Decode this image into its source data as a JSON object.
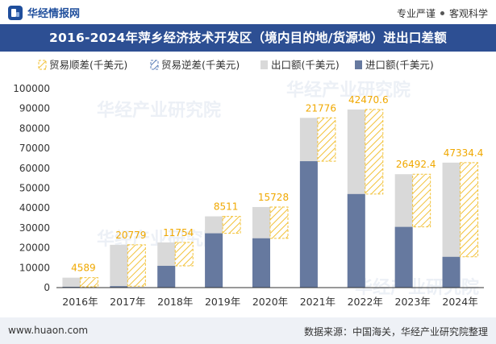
{
  "header": {
    "logo_text": "华经情报网",
    "right_left": "专业严谨",
    "right_right": "客观科学"
  },
  "title": "2016-2024年萍乡经济技术开发区（境内目的地/货源地）进出口差额",
  "footer": {
    "site": "www.huaon.com",
    "source": "数据来源：中国海关，华经产业研究院整理"
  },
  "watermark": "华经产业研究院",
  "colors": {
    "title_band": "#2d4f93",
    "export": "#d9d9d9",
    "import": "#66799f",
    "surplus_stroke": "#f2c23a",
    "deficit_stroke": "#5b7fb8"
  },
  "chart_data": {
    "type": "bar",
    "categories": [
      "2016年",
      "2017年",
      "2018年",
      "2019年",
      "2020年",
      "2021年",
      "2022年",
      "2023年",
      "2024年"
    ],
    "series": [
      {
        "name": "贸易顺差(千美元)",
        "values": [
          4589,
          20779,
          11754,
          8511,
          15728,
          21776,
          42470.6,
          26492.4,
          47334.4
        ]
      },
      {
        "name": "贸易逆差(千美元)",
        "values": [
          0,
          0,
          0,
          0,
          0,
          0,
          0,
          0,
          0
        ]
      },
      {
        "name": "出口额(千美元)",
        "values": [
          5000,
          21500,
          22700,
          35800,
          40500,
          85300,
          89500,
          57000,
          62800
        ]
      },
      {
        "name": "进口额(千美元)",
        "values": [
          411,
          721,
          10946,
          27289,
          24772,
          63524,
          47029.4,
          30507.6,
          15465.6
        ]
      }
    ],
    "data_labels": [
      "4589",
      "20779",
      "11754",
      "8511",
      "15728",
      "21776",
      "42470.6",
      "26492.4",
      "47334.4"
    ],
    "ylim": [
      0,
      100000
    ],
    "yticks": [
      0,
      10000,
      20000,
      30000,
      40000,
      50000,
      60000,
      70000,
      80000,
      90000,
      100000
    ],
    "legend_position": "top-right",
    "grid": false
  }
}
